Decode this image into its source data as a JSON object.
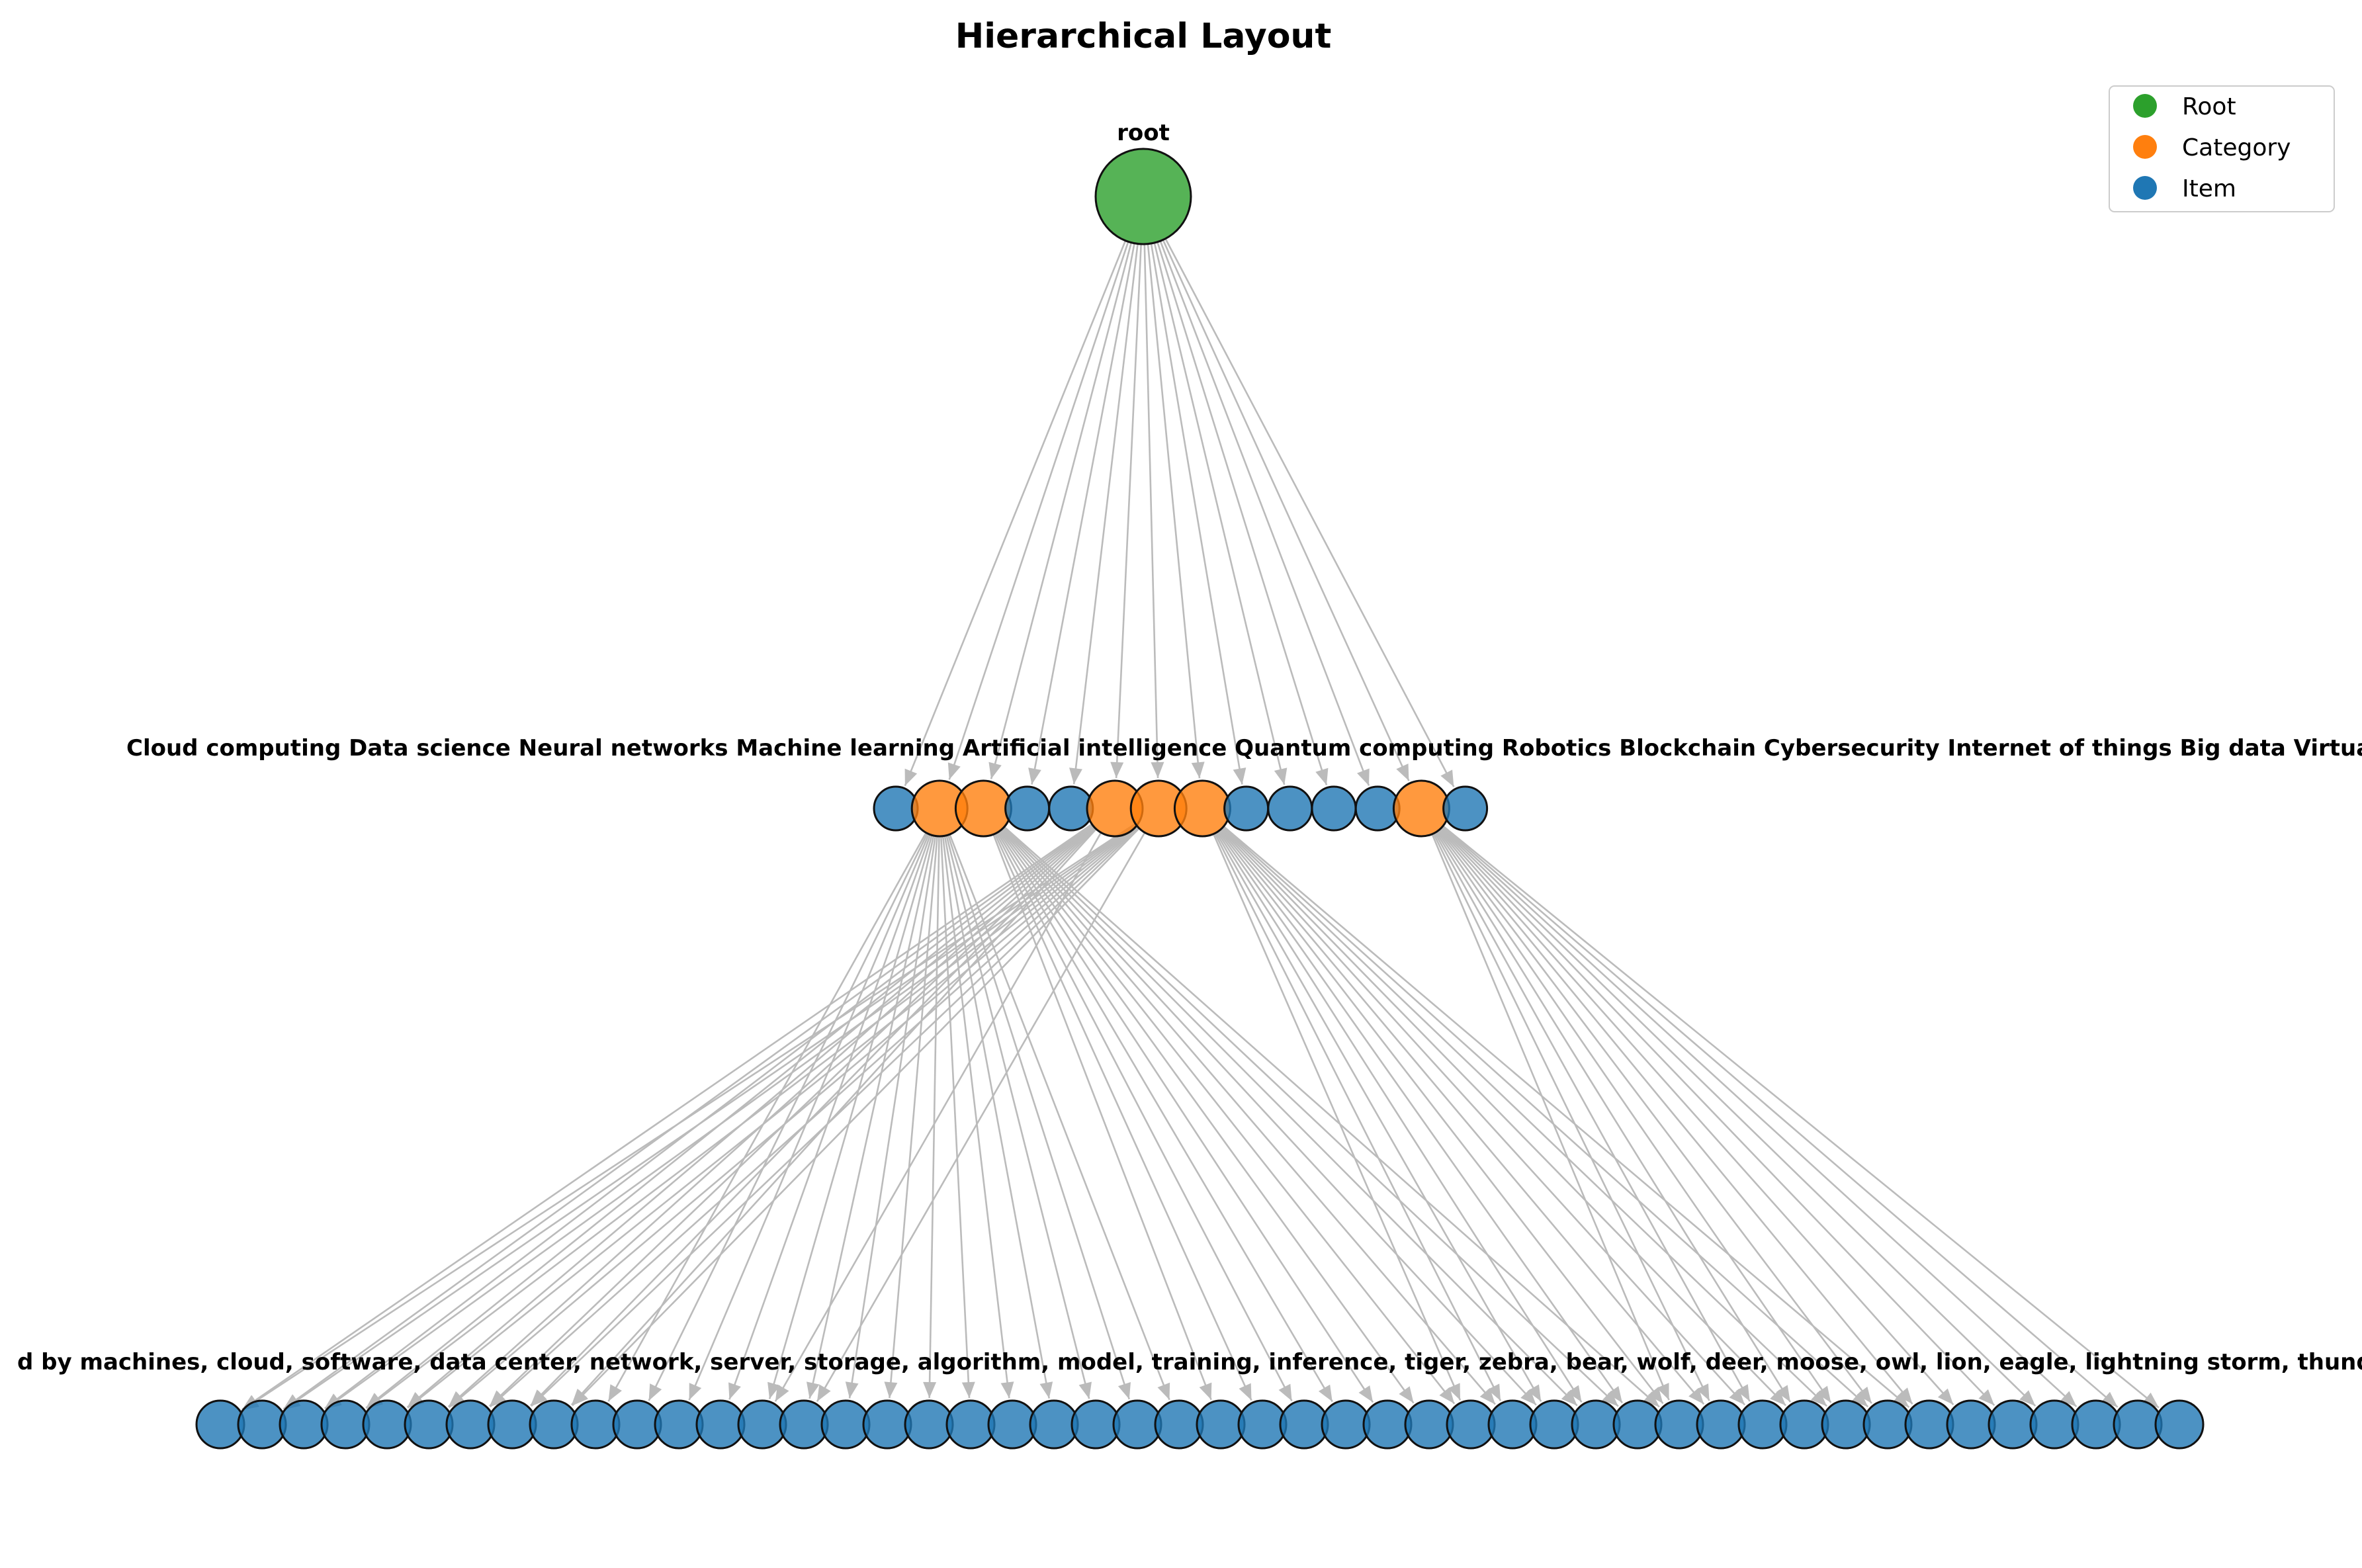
{
  "title": "Hierarchical Layout",
  "colors": {
    "root": "#2ca02c",
    "category": "#ff7f0e",
    "item": "#1f77b4",
    "edge": "#bbbbbb",
    "node_border": "#111111"
  },
  "legend": {
    "placement": "top-right",
    "entries": [
      {
        "label": "Root",
        "type": "root"
      },
      {
        "label": "Category",
        "type": "category"
      },
      {
        "label": "Item",
        "type": "item"
      }
    ]
  },
  "root": {
    "label": "root"
  },
  "level1": [
    {
      "type": "item"
    },
    {
      "type": "category",
      "children": [
        9,
        10,
        11,
        12,
        13,
        14,
        15,
        16,
        17,
        18,
        19,
        20,
        21,
        22,
        23
      ]
    },
    {
      "type": "category",
      "children": [
        24,
        25,
        26,
        27,
        28,
        29,
        30,
        31,
        32,
        33,
        34,
        35
      ]
    },
    {
      "type": "item"
    },
    {
      "type": "item"
    },
    {
      "type": "category",
      "children": [
        0,
        1,
        2,
        3,
        4,
        5,
        6,
        7,
        8,
        13
      ]
    },
    {
      "type": "category",
      "children": [
        0,
        1,
        2,
        3,
        4,
        5,
        6,
        7,
        8,
        14
      ]
    },
    {
      "type": "category",
      "children": [
        30,
        31,
        32,
        33,
        34,
        35,
        36,
        37,
        38,
        39,
        40,
        41
      ]
    },
    {
      "type": "item"
    },
    {
      "type": "item"
    },
    {
      "type": "item"
    },
    {
      "type": "item"
    },
    {
      "type": "category",
      "children": [
        35,
        36,
        37,
        38,
        39,
        40,
        41,
        42,
        43,
        44,
        45,
        46,
        47
      ]
    },
    {
      "type": "item"
    }
  ],
  "level1_label_text": "Cloud computing Data science Neural networks Machine learning Artificial intelligence Quantum computing Robotics Blockchain Cybersecurity Internet of things Big data Virtual reality Augmented reality Edge computing and distributed systems",
  "level2_count": 48,
  "level2_label_text": "d by machines, cloud, software, data center, network, server, storage, algorithm, model, training, inference, tiger, zebra, bear, wolf, deer, moose, owl, lion, eagle, lightning storm, thunder, fog, rain, wind, breeze"
}
